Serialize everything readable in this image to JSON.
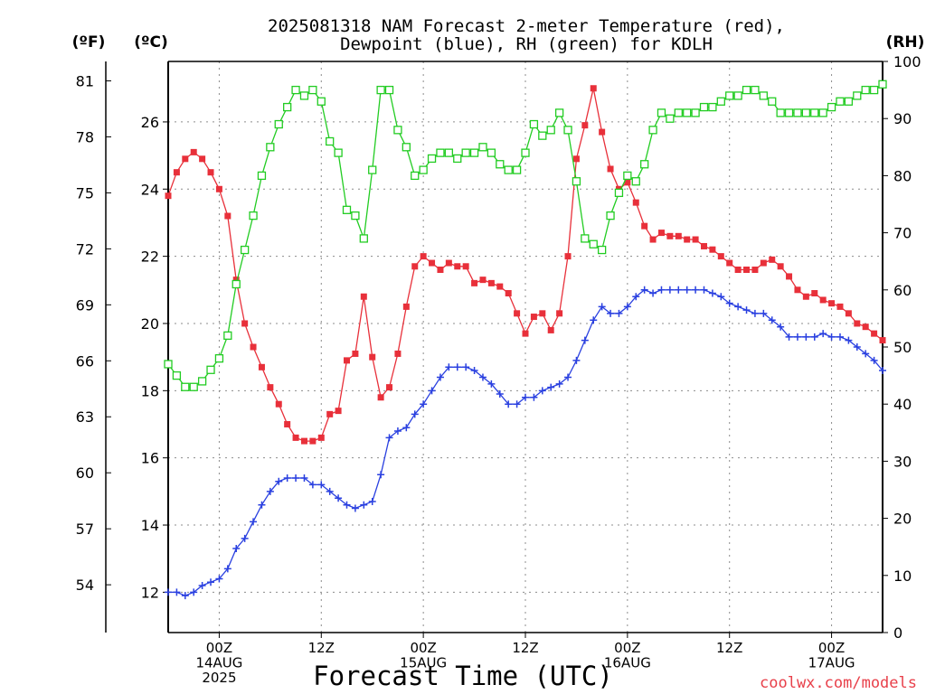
{
  "chart_data": {
    "type": "line",
    "title": [
      "2025081318 NAM Forecast 2-meter Temperature (red),",
      "Dewpoint (blue), RH (green) for KDLH"
    ],
    "xlabel": "Forecast Time (UTC)",
    "credit": "coolwx.com/models",
    "x_hours": {
      "start": -6,
      "end": 78,
      "step": 1
    },
    "x_ticks": [
      {
        "h": 0,
        "lines": [
          "00Z",
          "14AUG",
          "2025"
        ]
      },
      {
        "h": 12,
        "lines": [
          "12Z"
        ]
      },
      {
        "h": 24,
        "lines": [
          "00Z",
          "15AUG"
        ]
      },
      {
        "h": 36,
        "lines": [
          "12Z"
        ]
      },
      {
        "h": 48,
        "lines": [
          "00Z",
          "16AUG"
        ]
      },
      {
        "h": 60,
        "lines": [
          "12Z"
        ]
      },
      {
        "h": 72,
        "lines": [
          "00Z",
          "17AUG"
        ]
      }
    ],
    "axes": {
      "celsius": {
        "unit": "(ºC)",
        "range": [
          10.8,
          27.8
        ],
        "ticks": [
          12,
          14,
          16,
          18,
          20,
          22,
          24,
          26
        ]
      },
      "fahrenheit": {
        "unit": "(ºF)",
        "ticks": [
          54,
          57,
          60,
          63,
          66,
          69,
          72,
          75,
          78,
          81
        ]
      },
      "rh": {
        "unit": "(RH)",
        "range": [
          0,
          100
        ],
        "ticks": [
          0,
          10,
          20,
          30,
          40,
          50,
          60,
          70,
          80,
          90,
          100
        ]
      }
    },
    "colors": {
      "temperature": "#e8303a",
      "dewpoint": "#2a40e0",
      "rh": "#22cc22"
    },
    "series": [
      {
        "key": "temperature",
        "values": [
          23.8,
          24.5,
          24.9,
          25.1,
          24.9,
          24.5,
          24.0,
          23.2,
          21.3,
          20.0,
          19.3,
          18.7,
          18.1,
          17.6,
          17.0,
          16.6,
          16.5,
          16.5,
          16.6,
          17.3,
          17.4,
          18.9,
          19.1,
          20.8,
          19.0,
          17.8,
          18.1,
          19.1,
          20.5,
          21.7,
          22.0,
          21.8,
          21.6,
          21.8,
          21.7,
          21.7,
          21.2,
          21.3,
          21.2,
          21.1,
          20.9,
          20.3,
          19.7,
          20.2,
          20.3,
          19.8,
          20.3,
          22.0,
          24.9,
          25.9,
          27.0,
          25.7,
          24.6,
          24.0,
          24.2,
          23.6,
          22.9,
          22.5,
          22.7,
          22.6,
          22.6,
          22.5,
          22.5,
          22.3,
          22.2,
          22.0,
          21.8,
          21.6,
          21.6,
          21.6,
          21.8,
          21.9,
          21.7,
          21.4,
          21.0,
          20.8,
          20.9,
          20.7,
          20.6,
          20.5,
          20.3,
          20.0,
          19.9,
          19.7,
          19.5
        ]
      },
      {
        "key": "dewpoint",
        "values": [
          12.0,
          12.0,
          11.9,
          12.0,
          12.2,
          12.3,
          12.4,
          12.7,
          13.3,
          13.6,
          14.1,
          14.6,
          15.0,
          15.3,
          15.4,
          15.4,
          15.4,
          15.2,
          15.2,
          15.0,
          14.8,
          14.6,
          14.5,
          14.6,
          14.7,
          15.5,
          16.6,
          16.8,
          16.9,
          17.3,
          17.6,
          18.0,
          18.4,
          18.7,
          18.7,
          18.7,
          18.6,
          18.4,
          18.2,
          17.9,
          17.6,
          17.6,
          17.8,
          17.8,
          18.0,
          18.1,
          18.2,
          18.4,
          18.9,
          19.5,
          20.1,
          20.5,
          20.3,
          20.3,
          20.5,
          20.8,
          21.0,
          20.9,
          21.0,
          21.0,
          21.0,
          21.0,
          21.0,
          21.0,
          20.9,
          20.8,
          20.6,
          20.5,
          20.4,
          20.3,
          20.3,
          20.1,
          19.9,
          19.6,
          19.6,
          19.6,
          19.6,
          19.7,
          19.6,
          19.6,
          19.5,
          19.3,
          19.1,
          18.9,
          18.6
        ]
      },
      {
        "key": "rh",
        "values": [
          47,
          45,
          43,
          43,
          44,
          46,
          48,
          52,
          61,
          67,
          73,
          80,
          85,
          89,
          92,
          95,
          94,
          95,
          93,
          86,
          84,
          74,
          73,
          69,
          81,
          95,
          95,
          88,
          85,
          80,
          81,
          83,
          84,
          84,
          83,
          84,
          84,
          85,
          84,
          82,
          81,
          81,
          84,
          89,
          87,
          88,
          91,
          88,
          79,
          69,
          68,
          67,
          73,
          77,
          80,
          79,
          82,
          88,
          91,
          90,
          91,
          91,
          91,
          92,
          92,
          93,
          94,
          94,
          95,
          95,
          94,
          93,
          91,
          91,
          91,
          91,
          91,
          91,
          92,
          93,
          93,
          94,
          95,
          95,
          96
        ]
      }
    ]
  }
}
